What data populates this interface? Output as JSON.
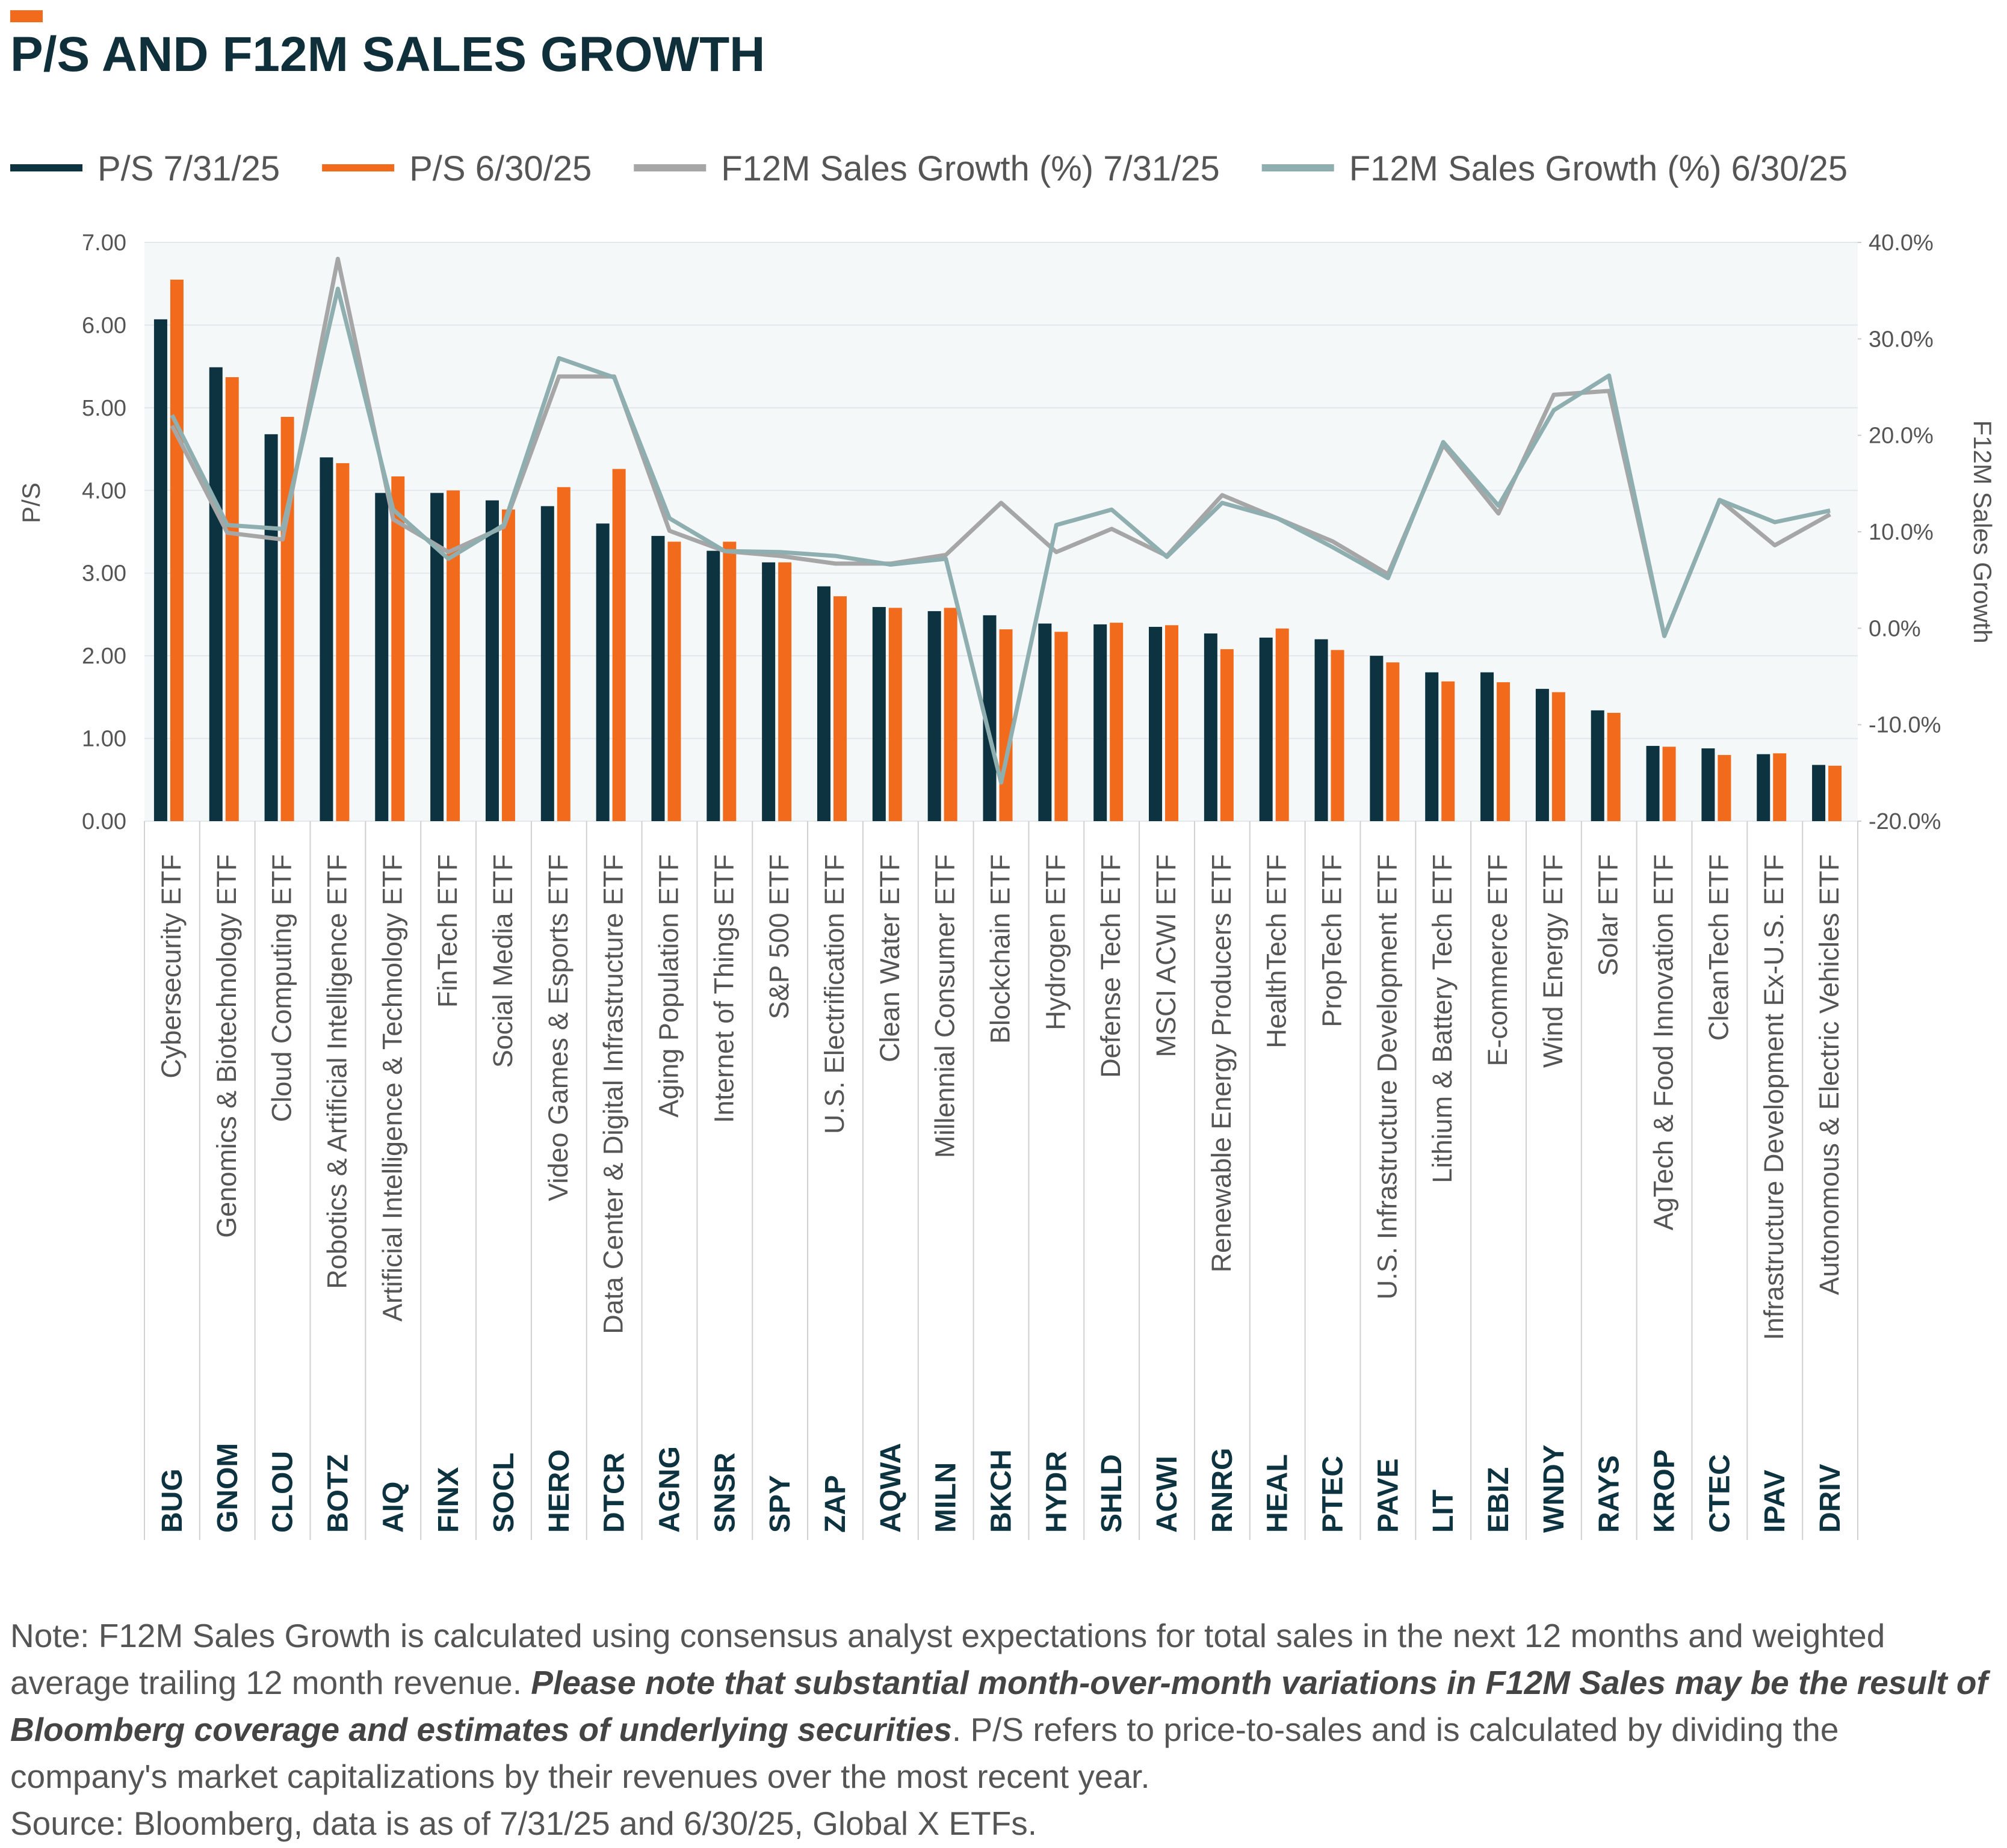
{
  "chart_data": {
    "type": "bar",
    "title": "P/S AND F12M SALES GROWTH",
    "y_label": "P/S",
    "y2_label": "F12M Sales Growth",
    "categories": [
      "Cybersecurity ETF",
      "Genomics & Biotechnology ETF",
      "Cloud Computing ETF",
      "Robotics & Artificial Intelligence ETF",
      "Artificial Intelligence & Technology ETF",
      "FinTech ETF",
      "Social Media ETF",
      "Video Games & Esports ETF",
      "Data Center & Digital Infrastructure ETF",
      "Aging Population ETF",
      "Internet of Things ETF",
      "S&P 500 ETF",
      "U.S. Electrification ETF",
      "Clean Water ETF",
      "Millennial Consumer ETF",
      "Blockchain ETF",
      "Hydrogen ETF",
      "Defense Tech ETF",
      "MSCI ACWI ETF",
      "Renewable Energy Producers ETF",
      "HealthTech ETF",
      "PropTech ETF",
      "U.S. Infrastructure Development ETF",
      "Lithium & Battery Tech ETF",
      "E-commerce ETF",
      "Wind Energy ETF",
      "Solar ETF",
      "AgTech & Food Innovation ETF",
      "CleanTech ETF",
      "Infrastructure Development Ex-U.S. ETF",
      "Autonomous & Electric Vehicles ETF"
    ],
    "tickers": [
      "BUG",
      "GNOM",
      "CLOU",
      "BOTZ",
      "AIQ",
      "FINX",
      "SOCL",
      "HERO",
      "DTCR",
      "AGNG",
      "SNSR",
      "SPY",
      "ZAP",
      "AQWA",
      "MILN",
      "BKCH",
      "HYDR",
      "SHLD",
      "ACWI",
      "RNRG",
      "HEAL",
      "PTEC",
      "PAVE",
      "LIT",
      "EBIZ",
      "WNDY",
      "RAYS",
      "KROP",
      "CTEC",
      "IPAV",
      "DRIV"
    ],
    "series": [
      {
        "name": "P/S 7/31/25",
        "type": "bar",
        "color": "#0d3340",
        "values": [
          6.07,
          5.49,
          4.68,
          4.4,
          3.97,
          3.97,
          3.88,
          3.81,
          3.6,
          3.45,
          3.27,
          3.13,
          2.84,
          2.59,
          2.54,
          2.49,
          2.39,
          2.38,
          2.35,
          2.27,
          2.22,
          2.2,
          2.0,
          1.8,
          1.8,
          1.6,
          1.34,
          0.91,
          0.88,
          0.81,
          0.68
        ]
      },
      {
        "name": "P/S 6/30/25",
        "type": "bar",
        "color": "#f26b1d",
        "values": [
          6.55,
          5.37,
          4.89,
          4.33,
          4.17,
          4.0,
          3.77,
          4.04,
          4.26,
          3.38,
          3.38,
          3.13,
          2.72,
          2.58,
          2.58,
          2.32,
          2.29,
          2.4,
          2.37,
          2.08,
          2.33,
          2.07,
          1.92,
          1.69,
          1.68,
          1.56,
          1.31,
          0.9,
          0.8,
          0.82,
          0.67
        ]
      },
      {
        "name": "F12M Sales Growth (%) 7/31/25",
        "type": "line",
        "axis": "y2",
        "color": "#a6a6a6",
        "values": [
          21.0,
          9.9,
          9.2,
          38.3,
          11.3,
          7.9,
          10.5,
          26.1,
          26.1,
          10.1,
          8.0,
          7.5,
          6.7,
          6.7,
          7.6,
          13.0,
          7.9,
          10.3,
          7.5,
          13.8,
          11.4,
          9.0,
          5.6,
          19.0,
          11.9,
          24.2,
          24.6,
          -0.8,
          13.3,
          8.6,
          11.8
        ]
      },
      {
        "name": "F12M Sales Growth (%) 6/30/25",
        "type": "line",
        "axis": "y2",
        "color": "#8eaeb0",
        "values": [
          22.1,
          10.7,
          10.3,
          35.2,
          12.3,
          7.2,
          10.7,
          28.0,
          26.0,
          11.4,
          8.0,
          7.9,
          7.5,
          6.6,
          7.2,
          -16.0,
          10.7,
          12.3,
          7.4,
          13.0,
          11.4,
          8.4,
          5.2,
          19.3,
          12.7,
          22.6,
          26.2,
          -0.8,
          13.3,
          11.0,
          12.2
        ]
      }
    ],
    "ylim": [
      0,
      7
    ],
    "yticks": [
      {
        "value": 0,
        "label": "0.00"
      },
      {
        "value": 1,
        "label": "1.00"
      },
      {
        "value": 2,
        "label": "2.00"
      },
      {
        "value": 3,
        "label": "3.00"
      },
      {
        "value": 4,
        "label": "4.00"
      },
      {
        "value": 5,
        "label": "5.00"
      },
      {
        "value": 6,
        "label": "6.00"
      },
      {
        "value": 7,
        "label": "7.00"
      }
    ],
    "y2lim": [
      -20,
      40
    ],
    "y2ticks": [
      {
        "value": -20,
        "label": "-20.0%"
      },
      {
        "value": -10,
        "label": "-10.0%"
      },
      {
        "value": 0,
        "label": "0.0%"
      },
      {
        "value": 10,
        "label": "10.0%"
      },
      {
        "value": 20,
        "label": "20.0%"
      },
      {
        "value": 30,
        "label": "30.0%"
      },
      {
        "value": 40,
        "label": "40.0%"
      }
    ],
    "grid": true,
    "legend": "top"
  },
  "footer": {
    "note": [
      "Note: F12M Sales Growth is calculated using consensus analyst expectations for total sales in the next 12 months and weighted average trailing 12 month revenue. ",
      "Please note that substantial month-over-month variations in F12M Sales may be the result of Bloomberg coverage and estimates of underlying securities",
      ". P/S refers to price-to-sales and is calculated by dividing the company's market capitalizations by their revenues over the most recent year."
    ],
    "source": "Source: Bloomberg, data is as of 7/31/25 and 6/30/25, Global X ETFs."
  }
}
